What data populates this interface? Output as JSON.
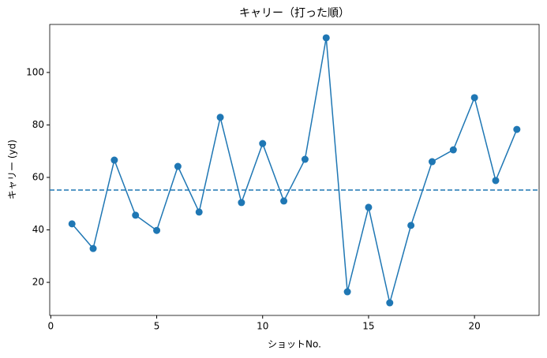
{
  "chart_data": {
    "type": "line",
    "title": "キャリー（打った順）",
    "x_label": "ショットNo.",
    "y_label": "キャリー (yd)",
    "x": [
      1,
      2,
      3,
      4,
      5,
      6,
      7,
      8,
      9,
      10,
      11,
      12,
      13,
      14,
      15,
      16,
      17,
      18,
      19,
      20,
      21,
      22
    ],
    "series": [
      {
        "color": "#1f77b4",
        "values": [
          42.3,
          32.9,
          66.6,
          45.6,
          39.8,
          64.2,
          46.8,
          82.9,
          50.4,
          72.9,
          51.0,
          66.9,
          113.2,
          16.4,
          48.6,
          12.2,
          41.7,
          66.0,
          70.5,
          90.4,
          58.8,
          78.3
        ]
      }
    ],
    "hline": {
      "value": 55.2,
      "color": "#1f77b4",
      "style": "dashed"
    },
    "xlim": [
      -0.05,
      23.05
    ],
    "ylim": [
      7.4,
      118.3
    ],
    "xticks": [
      0,
      5,
      10,
      15,
      20
    ],
    "yticks": [
      20,
      40,
      60,
      80,
      100
    ]
  }
}
